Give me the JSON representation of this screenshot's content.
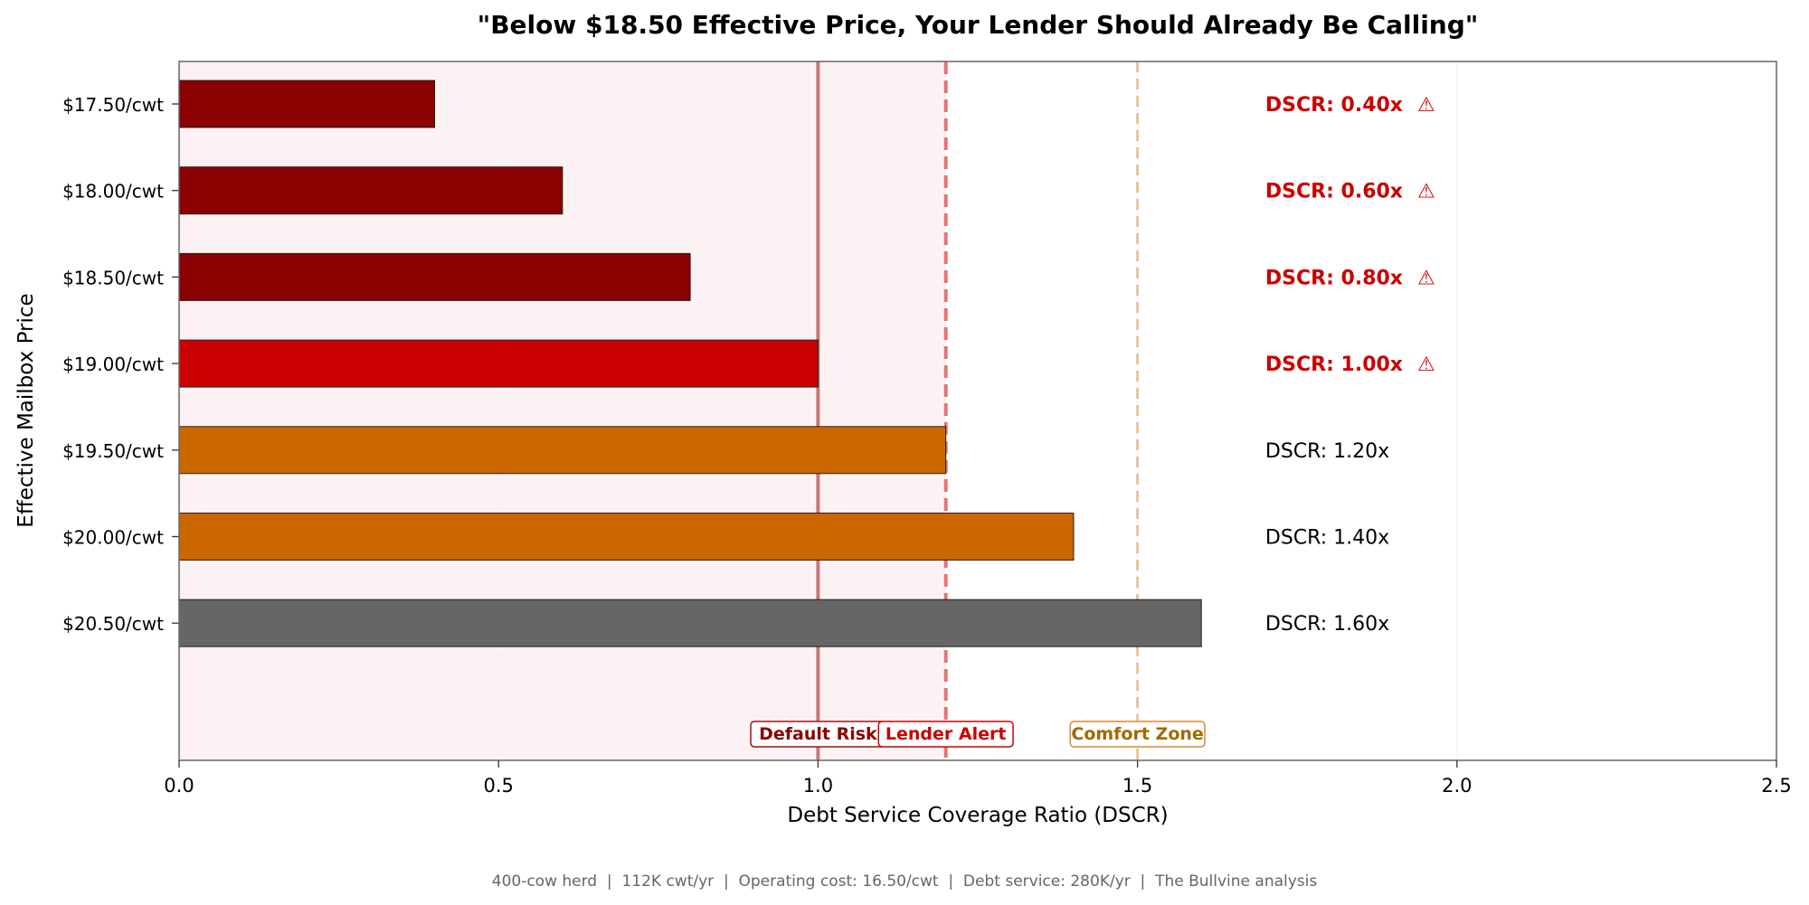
{
  "chart_data": {
    "type": "bar",
    "orientation": "horizontal",
    "title": "\"Below $18.50 Effective Price, Your Lender Should Already Be Calling\"",
    "xlabel": "Debt Service Coverage Ratio (DSCR)",
    "ylabel": "Effective Mailbox Price",
    "xlim": [
      0,
      2.5
    ],
    "xticks": [
      "0.0",
      "0.5",
      "1.0",
      "1.5",
      "2.0",
      "2.5"
    ],
    "xtick_values": [
      0,
      0.5,
      1.0,
      1.5,
      2.0,
      2.5
    ],
    "categories": [
      "$17.50/cwt",
      "$18.00/cwt",
      "$18.50/cwt",
      "$19.00/cwt",
      "$19.50/cwt",
      "$20.00/cwt",
      "$20.50/cwt"
    ],
    "values": [
      0.4,
      0.6,
      0.8,
      1.0,
      1.2,
      1.4,
      1.6
    ],
    "bar_colors": [
      "#8b0000",
      "#8b0000",
      "#8b0000",
      "#cc0000",
      "#cc6600",
      "#cc6600",
      "#666666"
    ],
    "value_labels": [
      "DSCR: 0.40x",
      "DSCR: 0.60x",
      "DSCR: 0.80x",
      "DSCR: 1.00x",
      "DSCR: 1.20x",
      "DSCR: 1.40x",
      "DSCR: 1.60x"
    ],
    "value_label_warning": [
      true,
      true,
      true,
      true,
      false,
      false,
      false
    ],
    "warning_symbol": "⚠",
    "warning_color": "#cc0000",
    "shaded_region": {
      "from": 0,
      "to": 1.2,
      "color": "#fdf2f3"
    },
    "reference_lines": [
      {
        "value": 1.0,
        "label": "Default Risk",
        "color": "#8b0000",
        "style": "solid"
      },
      {
        "value": 1.2,
        "label": "Lender Alert",
        "color": "#cc0000",
        "style": "dashed"
      },
      {
        "value": 1.5,
        "label": "Comfort Zone",
        "color": "#a06a00",
        "style": "dashed"
      }
    ]
  },
  "footer": "400-cow herd  |  112K cwt/yr  |  Operating cost: 16.50/cwt  |  Debt service: 280K/yr  |  The Bullvine analysis"
}
